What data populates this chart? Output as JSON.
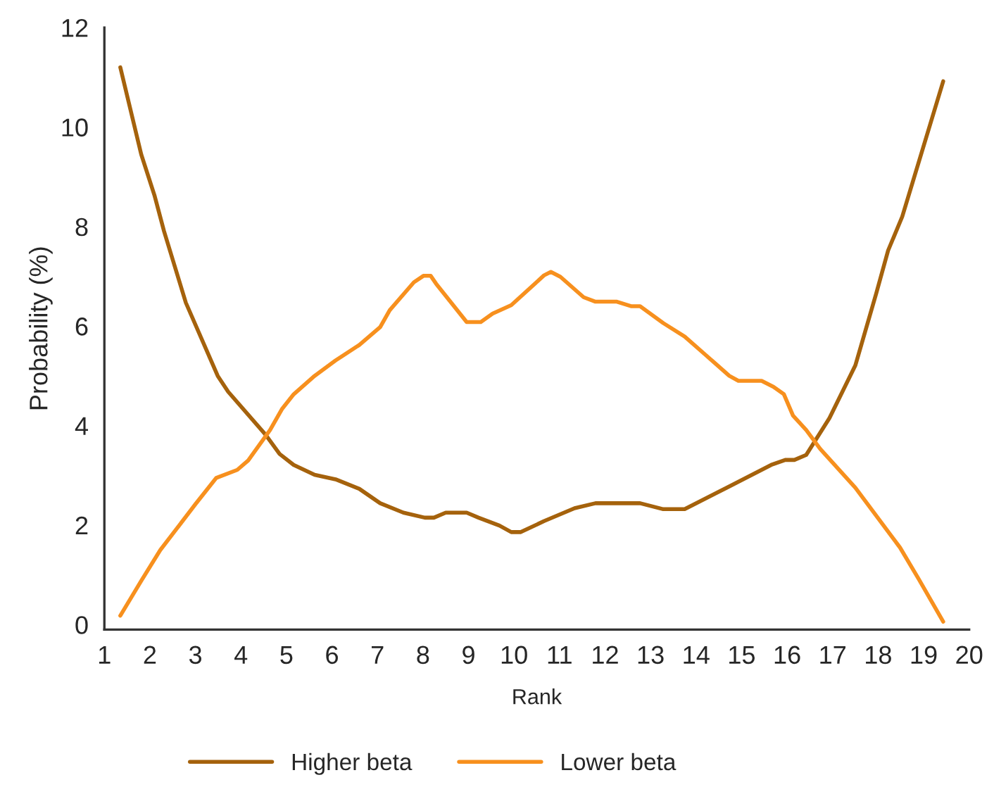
{
  "chart_data": {
    "type": "line",
    "xlabel": "Rank",
    "ylabel": "Probability (%)",
    "xlim": [
      1,
      20
    ],
    "ylim": [
      -0.1,
      12
    ],
    "xticks": [
      1,
      2,
      3,
      4,
      5,
      6,
      7,
      8,
      9,
      10,
      11,
      12,
      13,
      14,
      15,
      16,
      17,
      18,
      19,
      20
    ],
    "yticks": [
      0,
      2,
      4,
      6,
      8,
      10,
      12
    ],
    "grid": false,
    "legend": "bottom",
    "marker": "none",
    "line_style": "solid",
    "series": [
      {
        "name": "Higher beta",
        "color": "#a5620c",
        "x": [
          1.35,
          1.81,
          2.1,
          2.31,
          2.79,
          3.49,
          3.72,
          4.54,
          4.85,
          5.16,
          5.62,
          6.08,
          6.6,
          7.06,
          7.57,
          8.04,
          8.24,
          8.5,
          8.96,
          9.22,
          9.68,
          9.94,
          10.15,
          10.66,
          11.33,
          11.79,
          12.77,
          13.28,
          13.75,
          14.67,
          15.65,
          15.96,
          16.16,
          16.42,
          16.93,
          17.5,
          17.96,
          18.22,
          18.53,
          19.43
        ],
        "values": [
          11.2,
          9.45,
          8.63,
          7.91,
          6.47,
          5.0,
          4.68,
          3.82,
          3.43,
          3.21,
          3.01,
          2.92,
          2.73,
          2.44,
          2.25,
          2.15,
          2.15,
          2.25,
          2.25,
          2.15,
          1.99,
          1.86,
          1.86,
          2.08,
          2.34,
          2.44,
          2.44,
          2.32,
          2.32,
          2.75,
          3.21,
          3.31,
          3.31,
          3.41,
          4.15,
          5.21,
          6.66,
          7.52,
          8.2,
          10.92
        ]
      },
      {
        "name": "Lower beta",
        "color": "#f7901e",
        "x": [
          1.35,
          1.81,
          2.23,
          3.0,
          3.46,
          3.92,
          4.16,
          4.64,
          4.9,
          5.16,
          5.62,
          6.08,
          6.6,
          7.06,
          7.27,
          7.8,
          8.01,
          8.17,
          8.29,
          8.96,
          9.27,
          9.53,
          9.94,
          10.66,
          10.81,
          11.02,
          11.53,
          11.79,
          12.26,
          12.57,
          12.77,
          13.28,
          13.75,
          14.21,
          14.73,
          14.93,
          15.44,
          15.7,
          15.93,
          16.13,
          16.42,
          16.73,
          17.5,
          18.48,
          18.89,
          19.43
        ],
        "values": [
          0.18,
          0.88,
          1.5,
          2.42,
          2.95,
          3.11,
          3.3,
          3.91,
          4.33,
          4.63,
          5.0,
          5.31,
          5.62,
          5.98,
          6.32,
          6.88,
          7.01,
          7.01,
          6.85,
          6.08,
          6.08,
          6.25,
          6.42,
          7.02,
          7.09,
          6.99,
          6.58,
          6.49,
          6.49,
          6.4,
          6.4,
          6.06,
          5.79,
          5.42,
          5.0,
          4.9,
          4.9,
          4.78,
          4.63,
          4.2,
          3.91,
          3.53,
          2.75,
          1.55,
          0.92,
          0.06
        ]
      }
    ]
  }
}
